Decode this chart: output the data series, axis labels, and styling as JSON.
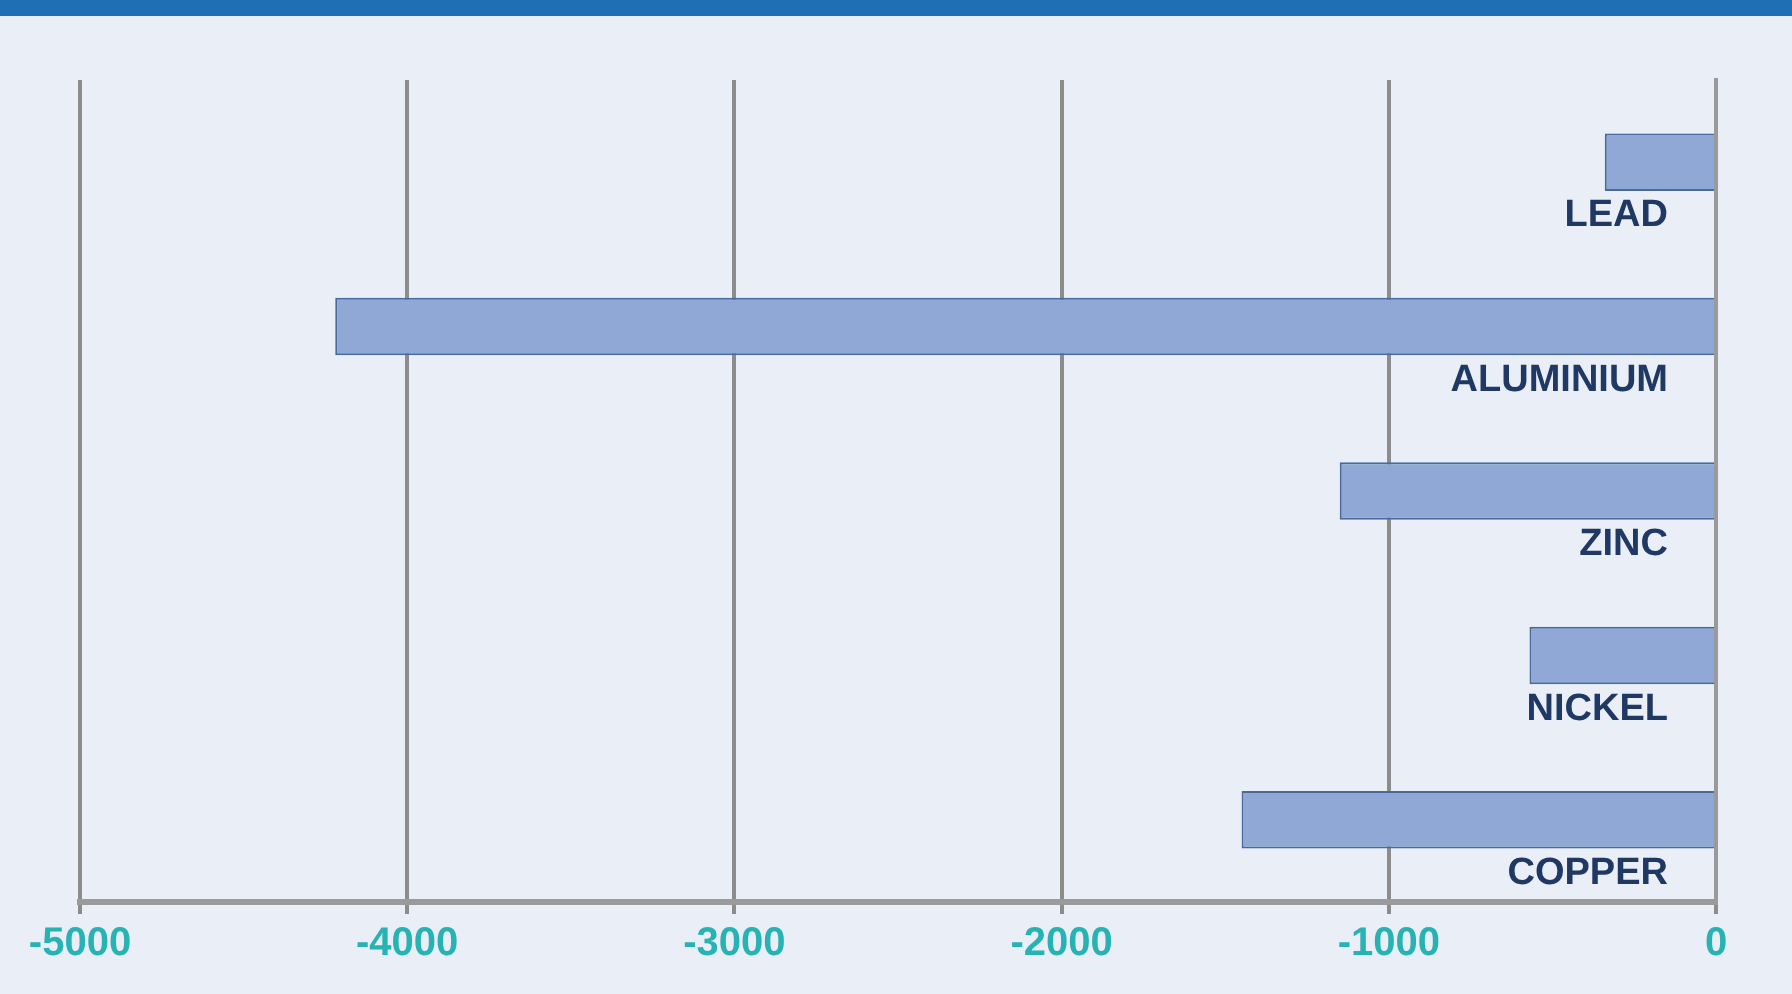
{
  "chart_data": {
    "type": "bar",
    "orientation": "horizontal",
    "categories": [
      "LEAD",
      "ALUMINIUM",
      "ZINC",
      "NICKEL",
      "COPPER"
    ],
    "values": [
      -340,
      -4220,
      -1150,
      -570,
      -1450
    ],
    "color": "#8fa8d6",
    "xlim": [
      -5000,
      0
    ],
    "xticks": [
      -5000,
      -4000,
      -3000,
      -2000,
      -1000,
      0
    ],
    "grid": "x"
  }
}
